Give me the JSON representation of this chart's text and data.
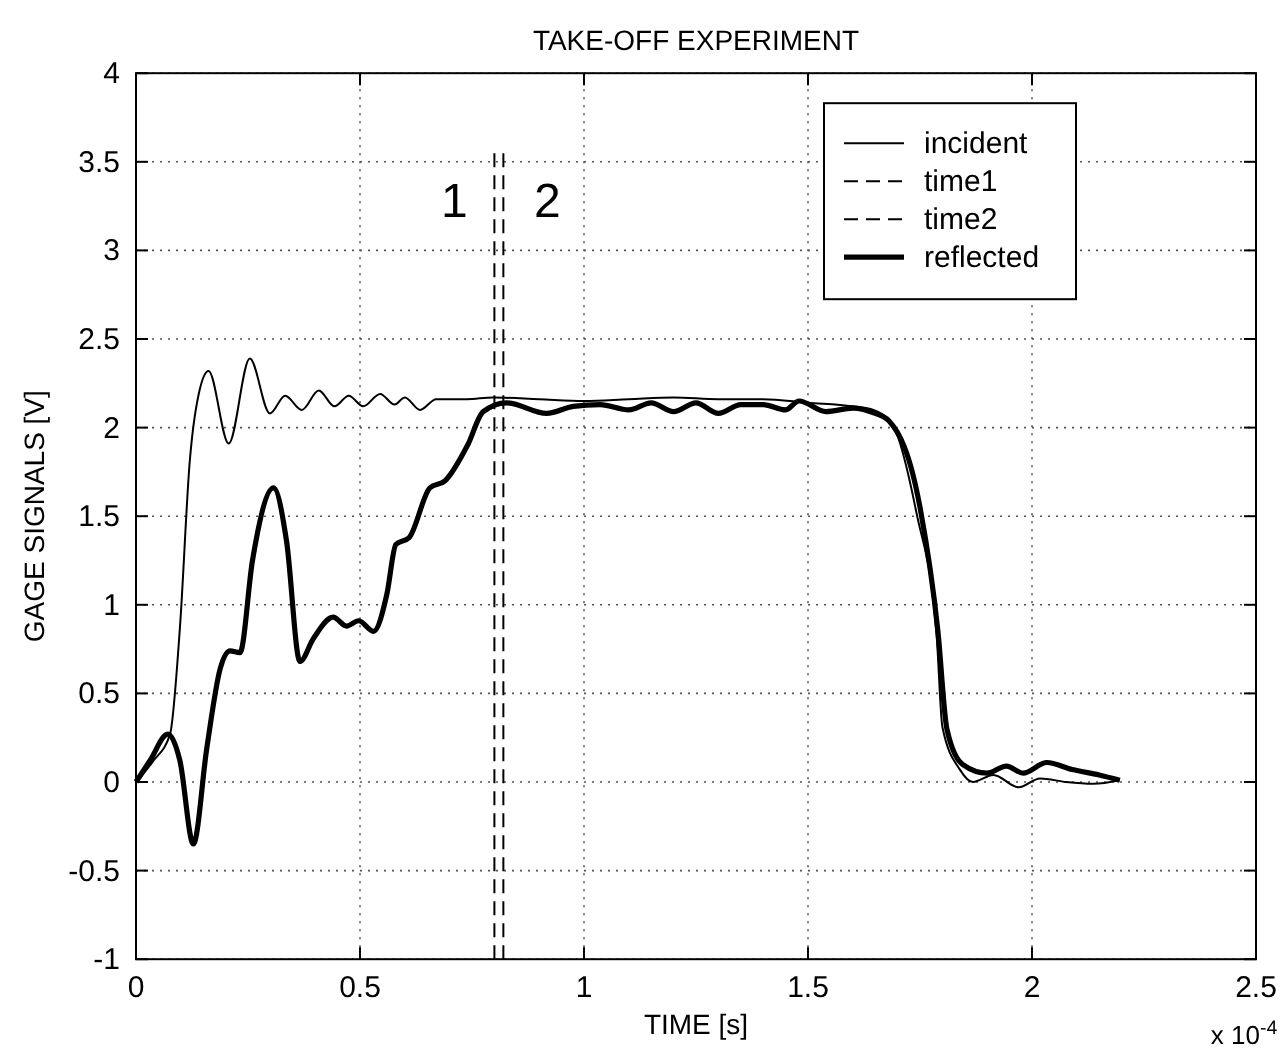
{
  "chart_data": {
    "type": "line",
    "title": "TAKE-OFF EXPERIMENT",
    "xlabel": "TIME [s]",
    "ylabel": "GAGE SIGNALS [V]",
    "xlim": [
      0,
      2.5
    ],
    "xticks": [
      0,
      0.5,
      1,
      1.5,
      2,
      2.5
    ],
    "ylim": [
      -1,
      4
    ],
    "yticks": [
      -1,
      -0.5,
      0,
      0.5,
      1,
      1.5,
      2,
      2.5,
      3,
      3.5,
      4
    ],
    "grid": true,
    "legend": "top right",
    "annotations": [
      "1",
      "2",
      "x 10$^{-4}$"
    ],
    "series": [
      {
        "name": "incident",
        "color": "#000000",
        "line_style": "solid",
        "x": [
          0,
          0.039,
          0.076,
          0.098,
          0.12,
          0.14,
          0.162,
          0.207,
          0.254,
          0.299,
          0.333,
          0.37,
          0.408,
          0.443,
          0.475,
          0.507,
          0.545,
          0.577,
          0.6,
          0.634,
          0.67,
          0.738,
          0.797,
          0.9,
          1,
          1.1,
          1.2,
          1.3,
          1.4,
          1.5,
          1.6,
          1.646,
          1.69,
          1.742,
          1.787,
          1.8,
          1.839,
          1.868,
          1.914,
          1.97,
          2.018,
          2.076,
          2.137,
          2.196
        ],
        "values": [
          0,
          0.12,
          0.27,
          0.87,
          1.81,
          2.19,
          2.32,
          1.91,
          2.39,
          2.08,
          2.18,
          2.1,
          2.21,
          2.12,
          2.18,
          2.12,
          2.19,
          2.13,
          2.17,
          2.1,
          2.16,
          2.16,
          2.17,
          2.16,
          2.15,
          2.16,
          2.17,
          2.16,
          2.16,
          2.14,
          2.12,
          2.1,
          2.01,
          1.52,
          0.83,
          0.31,
          0.07,
          0,
          0.04,
          -0.03,
          0.02,
          0,
          -0.01,
          0.01
        ]
      },
      {
        "name": "time1",
        "color": "#000000",
        "line_style": "dashed",
        "x": [
          0.8,
          0.8
        ],
        "values": [
          -1,
          3.57
        ]
      },
      {
        "name": "time2",
        "color": "#000000",
        "line_style": "dashed",
        "x": [
          0.82,
          0.82
        ],
        "values": [
          -1,
          3.57
        ]
      },
      {
        "name": "reflected",
        "color": "#000000",
        "line_style": "solid",
        "x": [
          0,
          0.031,
          0.071,
          0.098,
          0.128,
          0.158,
          0.188,
          0.21,
          0.232,
          0.26,
          0.307,
          0.336,
          0.366,
          0.396,
          0.44,
          0.47,
          0.497,
          0.53,
          0.56,
          0.58,
          0.61,
          0.656,
          0.69,
          0.74,
          0.775,
          0.827,
          0.917,
          0.976,
          1.036,
          1.1,
          1.15,
          1.2,
          1.25,
          1.3,
          1.35,
          1.4,
          1.45,
          1.48,
          1.54,
          1.6,
          1.65,
          1.68,
          1.75,
          1.79,
          1.81,
          1.845,
          1.9,
          1.943,
          1.98,
          2.033,
          2.09,
          2.15,
          2.196
        ],
        "values": [
          0,
          0.12,
          0.27,
          0.12,
          -0.35,
          0.19,
          0.64,
          0.74,
          0.73,
          1.25,
          1.66,
          1.36,
          0.68,
          0.81,
          0.93,
          0.88,
          0.91,
          0.85,
          1.06,
          1.34,
          1.38,
          1.66,
          1.7,
          1.9,
          2.09,
          2.14,
          2.08,
          2.12,
          2.13,
          2.1,
          2.14,
          2.09,
          2.14,
          2.08,
          2.13,
          2.13,
          2.1,
          2.15,
          2.09,
          2.11,
          2.08,
          2.04,
          1.55,
          0.85,
          0.3,
          0.1,
          0.05,
          0.09,
          0.05,
          0.11,
          0.07,
          0.04,
          0.01
        ]
      }
    ]
  }
}
